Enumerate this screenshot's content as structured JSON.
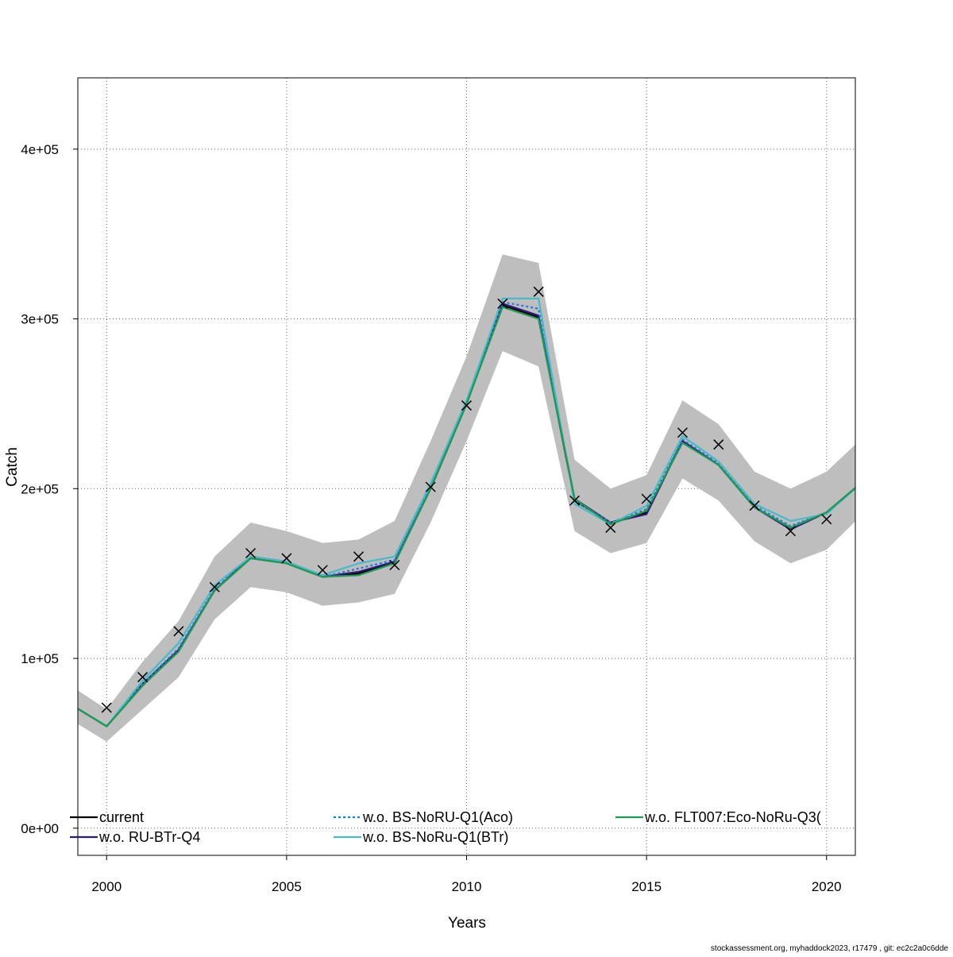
{
  "chart_data": {
    "type": "line",
    "xlabel": "Years",
    "ylabel": "Catch",
    "xlim": [
      1999.2,
      2020.8
    ],
    "ylim": [
      -16000,
      442000
    ],
    "x_ticks": [
      2000,
      2005,
      2010,
      2015,
      2020
    ],
    "x_tick_labels": [
      "2000",
      "2005",
      "2010",
      "2015",
      "2020"
    ],
    "y_ticks": [
      0,
      100000,
      200000,
      300000,
      400000
    ],
    "y_tick_labels": [
      "0e+00",
      "1e+05",
      "2e+05",
      "3e+05",
      "4e+05"
    ],
    "grid": true,
    "legend_position": "bottom",
    "x": [
      1999,
      2000,
      2001,
      2002,
      2003,
      2004,
      2005,
      2006,
      2007,
      2008,
      2009,
      2010,
      2011,
      2012,
      2013,
      2014,
      2015,
      2016,
      2017,
      2018,
      2019,
      2020,
      2021
    ],
    "band": {
      "color": "#bebebe",
      "lower": [
        64000,
        51000,
        70000,
        89000,
        123000,
        142000,
        139000,
        131000,
        133000,
        138000,
        180000,
        228000,
        281000,
        272000,
        175000,
        162000,
        168000,
        206000,
        193000,
        169000,
        156000,
        164000,
        185000
      ],
      "upper": [
        84000,
        70000,
        98000,
        122000,
        160000,
        180000,
        175000,
        168000,
        170000,
        181000,
        228000,
        278000,
        338000,
        333000,
        217000,
        200000,
        208000,
        252000,
        238000,
        210000,
        200000,
        210000,
        230000
      ]
    },
    "observed": {
      "marker": "x",
      "x": [
        2000,
        2001,
        2002,
        2003,
        2004,
        2005,
        2006,
        2007,
        2008,
        2009,
        2010,
        2011,
        2012,
        2013,
        2014,
        2015,
        2016,
        2017,
        2018,
        2019,
        2020
      ],
      "values": [
        71000,
        89000,
        116000,
        142000,
        162000,
        159000,
        152000,
        160000,
        155000,
        201000,
        249000,
        309000,
        316000,
        193000,
        177000,
        194000,
        233000,
        226000,
        190000,
        175000,
        182000
      ]
    },
    "series": [
      {
        "name": "current",
        "color": "#000000",
        "dash": "",
        "values": [
          73000,
          60000,
          84000,
          105000,
          140000,
          159000,
          156000,
          148000,
          150000,
          157000,
          200000,
          250000,
          308000,
          301000,
          193000,
          180000,
          186000,
          228000,
          214000,
          189000,
          177000,
          186000,
          204000
        ]
      },
      {
        "name": "w.o. RU-BTr-Q4",
        "color": "#2c1b7a",
        "dash": "",
        "values": [
          73000,
          60000,
          85000,
          105000,
          140000,
          160000,
          157000,
          148000,
          151000,
          157000,
          200000,
          250000,
          309000,
          302000,
          194000,
          180000,
          185000,
          228000,
          214000,
          189000,
          176000,
          186000,
          204000
        ]
      },
      {
        "name": "w.o. BS-NoRU-Q1(Aco)",
        "color": "#2a78d8",
        "dash": "3,3",
        "values": [
          73000,
          60000,
          85000,
          106000,
          141000,
          160000,
          157000,
          148000,
          153000,
          158000,
          201000,
          250000,
          310000,
          306000,
          193000,
          180000,
          188000,
          229000,
          215000,
          190000,
          178000,
          186000,
          204000
        ]
      },
      {
        "name": "w.o. BS-NoRu-Q1(BTr)",
        "color": "#4ab9c9",
        "dash": "",
        "values": [
          73000,
          60000,
          87000,
          109000,
          143000,
          160000,
          157000,
          149000,
          156000,
          160000,
          203000,
          252000,
          312000,
          312000,
          191000,
          179000,
          190000,
          231000,
          216000,
          191000,
          181000,
          185000,
          204000
        ]
      },
      {
        "name": "w.o. FLT007:Eco-NoRu-Q3(",
        "color": "#1f9a54",
        "dash": "",
        "values": [
          73000,
          60000,
          84000,
          104000,
          140000,
          159000,
          156000,
          148000,
          149000,
          156000,
          200000,
          250000,
          307000,
          300000,
          194000,
          179000,
          187000,
          227000,
          214000,
          189000,
          177000,
          186000,
          204000
        ]
      }
    ]
  },
  "footer": {
    "text": "stockassessment.org, myhaddock2023, r17479 , git: ec2c2a0c6dde"
  }
}
